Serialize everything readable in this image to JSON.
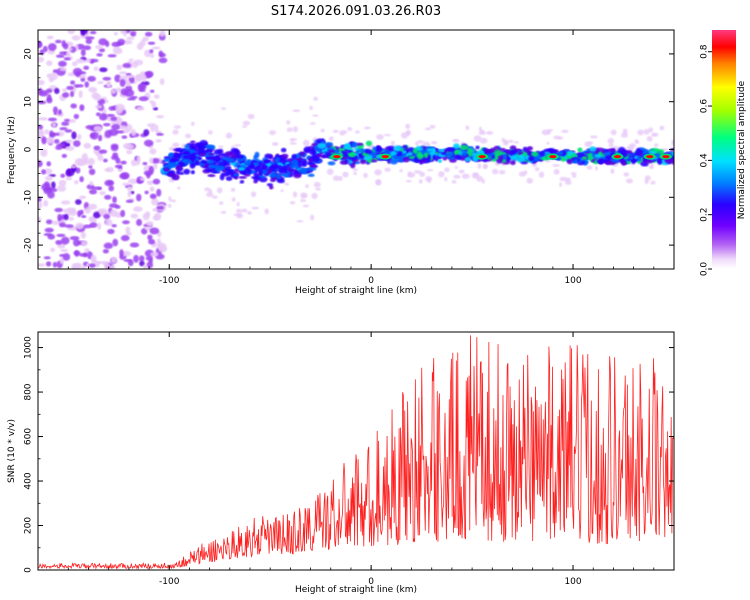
{
  "title": "S174.2026.091.03.26.R03",
  "chart_data": [
    {
      "type": "heatmap",
      "name": "spectrogram",
      "xlabel": "Height of straight line (km)",
      "ylabel": "Frequency (Hz)",
      "xlim": [
        -165,
        150
      ],
      "ylim": [
        -25,
        25
      ],
      "xticks": [
        -100,
        0,
        100
      ],
      "yticks": [
        -20,
        -10,
        0,
        10,
        20
      ],
      "xtick_labels": [
        "-100",
        "0",
        "100"
      ],
      "ytick_labels": [
        "-20",
        "-10",
        "0",
        "10",
        "20"
      ],
      "description_points": {
        "noise_region_x": [
          -165,
          -103
        ],
        "onset_x": -103,
        "band_center_hz": [
          [
            -103,
            -4
          ],
          [
            -90,
            -1
          ],
          [
            -70,
            -3
          ],
          [
            -50,
            -4
          ],
          [
            -30,
            -3
          ],
          [
            -25,
            1
          ],
          [
            -20,
            -1
          ],
          [
            0,
            -1
          ],
          [
            50,
            -1
          ],
          [
            100,
            -1.5
          ],
          [
            150,
            -1.5
          ]
        ],
        "hotspots": [
          [
            -17,
            -1.5
          ],
          [
            7,
            -1.5
          ],
          [
            55,
            -1.5
          ],
          [
            90,
            -1.5
          ],
          [
            122,
            -1.5
          ],
          [
            138,
            -1.5
          ],
          [
            146,
            -1.5
          ]
        ]
      },
      "colorbar": {
        "label": "Normalized spectral amplitude",
        "range": [
          0,
          0.88
        ],
        "ticks": [
          0,
          0.2,
          0.4,
          0.6,
          0.8
        ],
        "tick_labels": [
          "0.0",
          "0.2",
          "0.4",
          "0.6",
          "0.8"
        ],
        "colormap": [
          "#ffffff",
          "#e7c8f7",
          "#9a3ff0",
          "#5a00e0",
          "#2a00ff",
          "#0060ff",
          "#00d0ff",
          "#00e070",
          "#80f000",
          "#ffff00",
          "#ff9000",
          "#ff0000",
          "#ff2a6a"
        ]
      }
    },
    {
      "type": "line",
      "name": "snr",
      "xlabel": "Height of straight line (km)",
      "ylabel": "SNR (10 * v/v)",
      "xlim": [
        -165,
        150
      ],
      "ylim": [
        0,
        1070
      ],
      "xticks": [
        -100,
        0,
        100
      ],
      "yticks": [
        0,
        200,
        400,
        600,
        800,
        1000
      ],
      "xtick_labels": [
        "-100",
        "0",
        "100"
      ],
      "ytick_labels": [
        "0",
        "200",
        "400",
        "600",
        "800",
        "1000"
      ],
      "color": "#ff2020",
      "envelope": {
        "x": [
          -165,
          -120,
          -100,
          -95,
          -90,
          -80,
          -70,
          -60,
          -50,
          -40,
          -30,
          -20,
          -10,
          0,
          10,
          20,
          30,
          40,
          50,
          60,
          70,
          80,
          90,
          100,
          110,
          120,
          130,
          140,
          150
        ],
        "min": [
          8,
          8,
          8,
          10,
          20,
          30,
          50,
          60,
          70,
          70,
          80,
          90,
          100,
          100,
          110,
          120,
          130,
          120,
          140,
          130,
          120,
          130,
          140,
          120,
          120,
          110,
          130,
          120,
          150
        ],
        "max": [
          30,
          30,
          32,
          50,
          90,
          140,
          180,
          230,
          250,
          260,
          330,
          420,
          520,
          600,
          750,
          900,
          960,
          1000,
          1060,
          1030,
          1000,
          1050,
          1000,
          1030,
          1010,
          1040,
          970,
          1000,
          650
        ]
      }
    }
  ]
}
